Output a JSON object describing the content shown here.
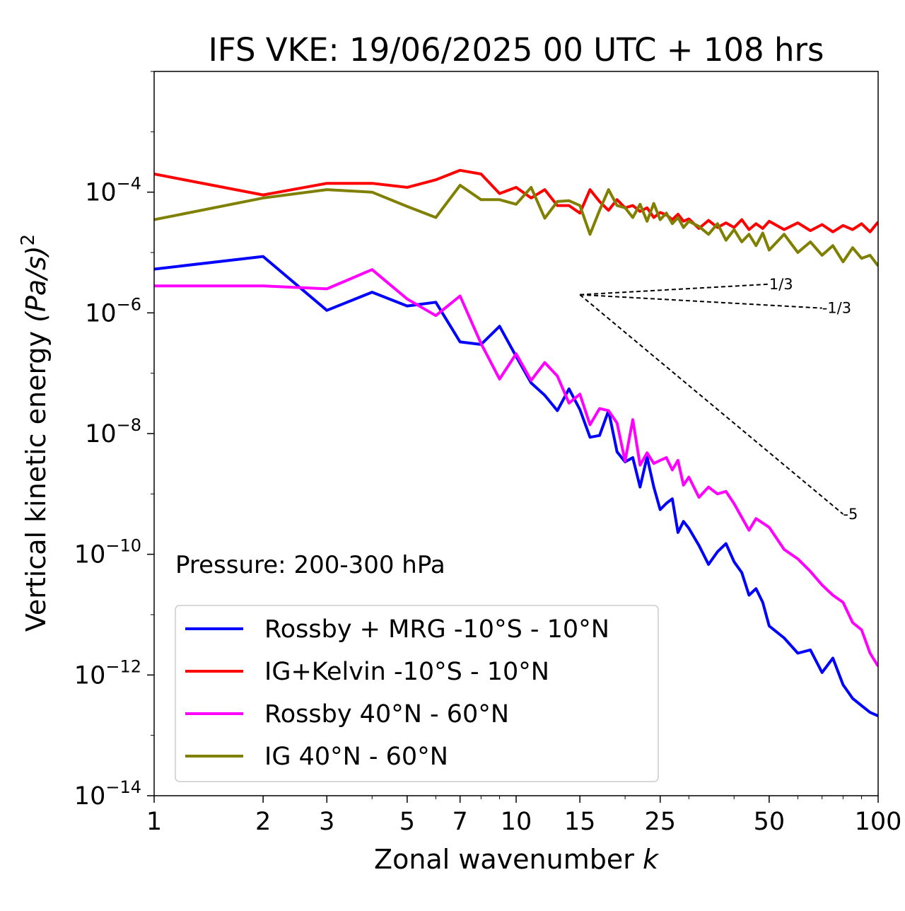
{
  "chart_data": {
    "type": "line",
    "title": "IFS VKE: 19/06/2025 00 UTC + 108 hrs",
    "xlabel": "Zonal wavenumber",
    "xlabel_var": "k",
    "ylabel": "Vertical kinetic energy",
    "ylabel_math": "(Pa/s)",
    "ylabel_exp": "2",
    "xscale": "log",
    "yscale": "log",
    "xlim": [
      1,
      100
    ],
    "ylim": [
      1e-14,
      0.01
    ],
    "x_ticks": [
      1,
      2,
      3,
      5,
      7,
      10,
      15,
      25,
      50,
      100
    ],
    "x_tick_labels": [
      "1",
      "2",
      "3",
      "5",
      "7",
      "10",
      "15",
      "25",
      "50",
      "100"
    ],
    "y_ticks": [
      0.0001,
      1e-06,
      1e-08,
      1e-10,
      1e-12,
      1e-14
    ],
    "y_tick_labels": [
      {
        "base": "10",
        "exp": "−4"
      },
      {
        "base": "10",
        "exp": "−6"
      },
      {
        "base": "10",
        "exp": "−8"
      },
      {
        "base": "10",
        "exp": "−10"
      },
      {
        "base": "10",
        "exp": "−12"
      },
      {
        "base": "10",
        "exp": "−14"
      }
    ],
    "grid": false,
    "legend_position": "lower-left",
    "annotation": "Pressure: 200-300 hPa",
    "series": [
      {
        "name": "Rossby + MRG -10°S - 10°N",
        "color": "#0000ff",
        "x": [
          1,
          2,
          3,
          4,
          5,
          6,
          7,
          8,
          9,
          10,
          11,
          12,
          13,
          14,
          15,
          16,
          17,
          18,
          19,
          20,
          21,
          22,
          23,
          24,
          25,
          26,
          27,
          28,
          29,
          30,
          32,
          34,
          36,
          38,
          40,
          42,
          44,
          46,
          48,
          50,
          55,
          60,
          65,
          70,
          75,
          80,
          85,
          90,
          95,
          100
        ],
        "y": [
          5.3e-06,
          8.6e-06,
          1.1e-06,
          2.2e-06,
          1.3e-06,
          1.5e-06,
          3.3e-07,
          3e-07,
          6e-07,
          1.9e-07,
          6.9e-08,
          4.3e-08,
          2.4e-08,
          5.5e-08,
          2.5e-08,
          8.7e-09,
          9.3e-09,
          2.4e-08,
          5e-09,
          3.4e-09,
          4e-09,
          1.3e-09,
          4.1e-09,
          1.3e-09,
          5.5e-10,
          7e-10,
          8.3e-10,
          2.3e-10,
          3.5e-10,
          2.7e-10,
          1.4e-10,
          6.8e-11,
          1.1e-10,
          1.5e-10,
          7.5e-11,
          5e-11,
          2.1e-11,
          2.7e-11,
          1.6e-11,
          6.5e-12,
          4.1e-12,
          2.3e-12,
          2.6e-12,
          1.1e-12,
          1.9e-12,
          6.9e-13,
          4.1e-13,
          3.1e-13,
          2.4e-13,
          2.1e-13
        ]
      },
      {
        "name": "IG+Kelvin -10°S - 10°N",
        "color": "#ff0000",
        "x": [
          1,
          2,
          3,
          4,
          5,
          6,
          7,
          8,
          9,
          10,
          11,
          12,
          13,
          14,
          15,
          16,
          17,
          18,
          19,
          20,
          21,
          22,
          23,
          24,
          25,
          26,
          27,
          28,
          29,
          30,
          32,
          34,
          36,
          38,
          40,
          42,
          44,
          46,
          48,
          50,
          55,
          60,
          65,
          70,
          75,
          80,
          85,
          90,
          95,
          100
        ],
        "y": [
          0.0002,
          9e-05,
          0.00014,
          0.00014,
          0.00012,
          0.00016,
          0.00023,
          0.0002,
          9.5e-05,
          0.00012,
          8e-05,
          0.00011,
          6e-05,
          6e-05,
          4.5e-05,
          0.00011,
          7e-05,
          5e-05,
          7.5e-05,
          5.5e-05,
          6e-05,
          4.8e-05,
          5.5e-05,
          3.8e-05,
          4.6e-05,
          4.2e-05,
          3.5e-05,
          4.3e-05,
          3.3e-05,
          3.6e-05,
          2.5e-05,
          3.4e-05,
          2.6e-05,
          3.1e-05,
          2.6e-05,
          3.5e-05,
          2.4e-05,
          3e-05,
          2.5e-05,
          3.3e-05,
          2.4e-05,
          3.1e-05,
          2.3e-05,
          2.9e-05,
          2.2e-05,
          2.8e-05,
          2.4e-05,
          3e-05,
          2.2e-05,
          3.2e-05
        ]
      },
      {
        "name": "Rossby 40°N - 60°N",
        "color": "#ff00ff",
        "x": [
          1,
          2,
          3,
          4,
          5,
          6,
          7,
          8,
          9,
          10,
          11,
          12,
          13,
          14,
          15,
          16,
          17,
          18,
          19,
          20,
          21,
          22,
          23,
          24,
          25,
          26,
          27,
          28,
          29,
          30,
          32,
          34,
          36,
          38,
          40,
          42,
          44,
          46,
          48,
          50,
          55,
          60,
          65,
          70,
          75,
          80,
          85,
          90,
          95,
          100
        ],
        "y": [
          2.8e-06,
          2.8e-06,
          2.5e-06,
          5.2e-06,
          1.7e-06,
          9e-07,
          1.9e-06,
          3.1e-07,
          8e-08,
          2.1e-07,
          7.6e-08,
          1.5e-07,
          9e-08,
          3.2e-08,
          4.5e-08,
          1.4e-08,
          2.6e-08,
          2.4e-08,
          1.5e-08,
          3.5e-09,
          1.7e-08,
          3e-09,
          4.8e-09,
          3.2e-09,
          3.6e-09,
          4e-09,
          2.5e-09,
          3.6e-09,
          1.4e-09,
          1.9e-09,
          8.8e-10,
          1.3e-09,
          1e-09,
          1.1e-09,
          6.9e-10,
          4.1e-10,
          2.5e-10,
          3.9e-10,
          3.3e-10,
          2.8e-10,
          1.2e-10,
          8.4e-11,
          5.2e-11,
          3.1e-11,
          2.1e-11,
          1.6e-11,
          7.4e-12,
          5.6e-12,
          2.3e-12,
          1.4e-12
        ]
      },
      {
        "name": "IG 40°N - 60°N",
        "color": "#808000",
        "x": [
          1,
          2,
          3,
          4,
          5,
          6,
          7,
          8,
          9,
          10,
          11,
          12,
          13,
          14,
          15,
          16,
          17,
          18,
          19,
          20,
          21,
          22,
          23,
          24,
          25,
          26,
          27,
          28,
          29,
          30,
          32,
          34,
          36,
          38,
          40,
          42,
          44,
          46,
          48,
          50,
          55,
          60,
          65,
          70,
          75,
          80,
          85,
          90,
          95,
          100
        ],
        "y": [
          3.5e-05,
          8e-05,
          0.00011,
          0.0001,
          5.8e-05,
          3.8e-05,
          0.00013,
          7.5e-05,
          7.5e-05,
          6.3e-05,
          0.00012,
          3.7e-05,
          7e-05,
          7.2e-05,
          6e-05,
          2e-05,
          5e-05,
          0.00011,
          6e-05,
          5.5e-05,
          3.8e-05,
          6.3e-05,
          3.3e-05,
          6.5e-05,
          3.5e-05,
          4.5e-05,
          3e-05,
          3.8e-05,
          2.6e-05,
          3.3e-05,
          2.7e-05,
          2e-05,
          3e-05,
          1.6e-05,
          2.4e-05,
          1.5e-05,
          2e-05,
          1.3e-05,
          2.1e-05,
          1.1e-05,
          2e-05,
          1e-05,
          1.5e-05,
          9e-06,
          1.3e-05,
          7e-06,
          1.2e-05,
          8e-06,
          9e-06,
          6e-06
        ]
      }
    ],
    "reference_slopes": [
      {
        "label": "1/3",
        "slope": 0.3333,
        "x_start": 15,
        "x_end": 50,
        "y_start": 2e-06
      },
      {
        "label": "-1/3",
        "slope": -0.3333,
        "x_start": 15,
        "x_end": 70,
        "y_start": 2e-06
      },
      {
        "label": "-5",
        "slope": -5,
        "x_start": 15,
        "x_end": 80,
        "y_start": 2e-06
      }
    ]
  }
}
